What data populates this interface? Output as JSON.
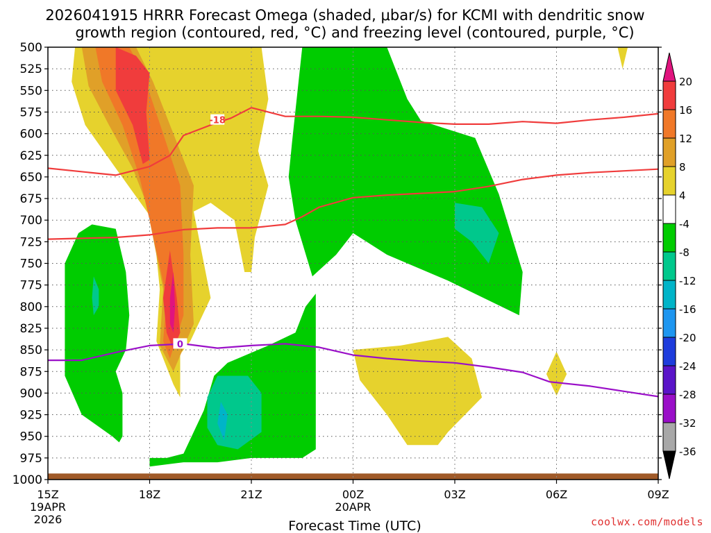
{
  "title": {
    "line1": "2026041915 HRRR Forecast Omega (shaded, μbar/s) for KCMI with dendritic snow",
    "line2": "growth region (contoured, red, °C) and freezing level (contoured, purple, °C)"
  },
  "credit": "coolwx.com/models",
  "chart_data": {
    "type": "heatmap",
    "title": "2026041915 HRRR Forecast Omega (shaded, μbar/s) for KCMI with dendritic snow growth region (contoured, red, °C) and freezing level (contoured, purple, °C)",
    "xlabel": "Forecast Time (UTC)",
    "ylabel": "",
    "y_axis": {
      "type": "pressure",
      "inverted": true,
      "ylim": [
        1000,
        500
      ],
      "ticks": [
        500,
        525,
        550,
        575,
        600,
        625,
        650,
        675,
        700,
        725,
        750,
        775,
        800,
        825,
        850,
        875,
        900,
        925,
        950,
        975,
        1000
      ]
    },
    "x_axis": {
      "units": "hours from 2026-04-19 15Z",
      "xlim": [
        0,
        18
      ],
      "ticks": [
        {
          "x": 0,
          "label": "15Z",
          "sub1": "19APR",
          "sub2": "2026"
        },
        {
          "x": 3,
          "label": "18Z",
          "sub1": "",
          "sub2": ""
        },
        {
          "x": 6,
          "label": "21Z",
          "sub1": "",
          "sub2": ""
        },
        {
          "x": 9,
          "label": "00Z",
          "sub1": "20APR",
          "sub2": ""
        },
        {
          "x": 12,
          "label": "03Z",
          "sub1": "",
          "sub2": ""
        },
        {
          "x": 15,
          "label": "06Z",
          "sub1": "",
          "sub2": ""
        },
        {
          "x": 18,
          "label": "09Z",
          "sub1": "",
          "sub2": ""
        }
      ]
    },
    "grid": true,
    "colorbar": {
      "labels": [
        "20",
        "16",
        "12",
        "8",
        "4",
        "-4",
        "-8",
        "-12",
        "-16",
        "-20",
        "-24",
        "-28",
        "-32",
        "-36"
      ],
      "bins": [
        {
          "color": "#e0147e"
        },
        {
          "color": "#f03c3c"
        },
        {
          "color": "#f07828"
        },
        {
          "color": "#e0a028"
        },
        {
          "color": "#e6d22d"
        },
        {
          "color": "#ffffff"
        },
        {
          "color": "#00cc00"
        },
        {
          "color": "#00c88c"
        },
        {
          "color": "#00b4c8"
        },
        {
          "color": "#1e96f0"
        },
        {
          "color": "#1e3cdc"
        },
        {
          "color": "#5a14c8"
        },
        {
          "color": "#9a0fc8"
        },
        {
          "color": "#a8a8a8"
        },
        {
          "color": "#000000"
        }
      ]
    },
    "omega_regions": [
      {
        "value": "4 to 8",
        "color": "#e6d22d",
        "points": [
          [
            0.8,
            500
          ],
          [
            6.3,
            500
          ],
          [
            6.5,
            560
          ],
          [
            6.2,
            620
          ],
          [
            6.5,
            660
          ],
          [
            6.1,
            720
          ],
          [
            6.0,
            760
          ],
          [
            5.8,
            760
          ],
          [
            5.5,
            700
          ],
          [
            4.8,
            680
          ],
          [
            4.3,
            690
          ],
          [
            4.8,
            790
          ],
          [
            4.2,
            840
          ],
          [
            3.9,
            855
          ],
          [
            3.9,
            905
          ],
          [
            3.7,
            890
          ],
          [
            3.2,
            840
          ],
          [
            3.3,
            780
          ],
          [
            3.1,
            700
          ],
          [
            2.0,
            640
          ],
          [
            1.1,
            590
          ],
          [
            0.7,
            540
          ]
        ]
      },
      {
        "value": "8 to 12",
        "color": "#e0a028",
        "points": [
          [
            1.0,
            500
          ],
          [
            2.6,
            500
          ],
          [
            3.1,
            540
          ],
          [
            3.6,
            590
          ],
          [
            4.3,
            660
          ],
          [
            4.2,
            740
          ],
          [
            4.3,
            820
          ],
          [
            3.7,
            875
          ],
          [
            3.3,
            845
          ],
          [
            3.4,
            780
          ],
          [
            2.9,
            680
          ],
          [
            2.5,
            640
          ],
          [
            1.8,
            590
          ],
          [
            1.2,
            545
          ]
        ]
      },
      {
        "value": "12 to 16",
        "color": "#f07828",
        "points": [
          [
            1.4,
            500
          ],
          [
            2.4,
            500
          ],
          [
            2.8,
            530
          ],
          [
            3.4,
            600
          ],
          [
            3.9,
            660
          ],
          [
            4.0,
            740
          ],
          [
            4.0,
            810
          ],
          [
            3.6,
            860
          ],
          [
            3.4,
            840
          ],
          [
            3.5,
            790
          ],
          [
            3.0,
            700
          ],
          [
            2.7,
            650
          ],
          [
            2.2,
            590
          ],
          [
            1.6,
            540
          ]
        ]
      },
      {
        "value": "16 to 20",
        "color": "#f03c3c",
        "points": [
          [
            2.0,
            500
          ],
          [
            2.6,
            510
          ],
          [
            3.0,
            530
          ],
          [
            2.9,
            575
          ],
          [
            3.0,
            630
          ],
          [
            2.8,
            635
          ],
          [
            2.5,
            590
          ],
          [
            2.0,
            550
          ]
        ]
      },
      {
        "value": "16 to 20",
        "color": "#f03c3c",
        "points": [
          [
            3.6,
            735
          ],
          [
            3.8,
            790
          ],
          [
            3.9,
            830
          ],
          [
            3.7,
            850
          ],
          [
            3.5,
            830
          ],
          [
            3.4,
            790
          ]
        ]
      },
      {
        "value": "20+",
        "color": "#e0147e",
        "points": [
          [
            3.7,
            760
          ],
          [
            3.75,
            800
          ],
          [
            3.7,
            830
          ],
          [
            3.6,
            820
          ],
          [
            3.6,
            790
          ]
        ]
      },
      {
        "value": "4 to 8",
        "color": "#e6d22d",
        "points": [
          [
            16.8,
            500
          ],
          [
            17.1,
            500
          ],
          [
            16.95,
            525
          ]
        ]
      },
      {
        "value": "4 to 8",
        "color": "#e6d22d",
        "points": [
          [
            15.0,
            852
          ],
          [
            15.3,
            878
          ],
          [
            15.0,
            903
          ],
          [
            14.7,
            878
          ]
        ]
      },
      {
        "value": "4 to 8",
        "color": "#e6d22d",
        "points": [
          [
            9.0,
            850
          ],
          [
            10.4,
            845
          ],
          [
            11.8,
            835
          ],
          [
            12.5,
            860
          ],
          [
            12.8,
            905
          ],
          [
            11.8,
            945
          ],
          [
            11.5,
            960
          ],
          [
            10.6,
            960
          ],
          [
            10.0,
            925
          ],
          [
            9.2,
            885
          ]
        ]
      },
      {
        "value": "-8 to -4",
        "color": "#00cc00",
        "points": [
          [
            0.9,
            715
          ],
          [
            1.3,
            705
          ],
          [
            2.0,
            710
          ],
          [
            2.3,
            760
          ],
          [
            2.4,
            810
          ],
          [
            2.3,
            850
          ],
          [
            2.0,
            875
          ],
          [
            2.2,
            900
          ],
          [
            2.2,
            950
          ],
          [
            2.1,
            957
          ],
          [
            1.9,
            950
          ],
          [
            1.0,
            925
          ],
          [
            0.5,
            880
          ],
          [
            0.5,
            850
          ],
          [
            0.5,
            750
          ]
        ]
      },
      {
        "value": "-8 to -4",
        "color": "#00cc00",
        "points": [
          [
            7.5,
            500
          ],
          [
            10.0,
            500
          ],
          [
            10.6,
            560
          ],
          [
            11.0,
            585
          ],
          [
            12.6,
            605
          ],
          [
            13.3,
            670
          ],
          [
            14.0,
            760
          ],
          [
            13.9,
            810
          ],
          [
            11.8,
            770
          ],
          [
            10.0,
            740
          ],
          [
            9.0,
            715
          ],
          [
            8.5,
            740
          ],
          [
            7.8,
            765
          ],
          [
            7.3,
            700
          ],
          [
            7.1,
            650
          ],
          [
            7.2,
            610
          ]
        ]
      },
      {
        "value": "-8 to -4",
        "color": "#00cc00",
        "points": [
          [
            7.9,
            785
          ],
          [
            7.9,
            855
          ],
          [
            7.9,
            965
          ],
          [
            7.5,
            975
          ],
          [
            6.0,
            975
          ],
          [
            5.0,
            980
          ],
          [
            4.0,
            980
          ],
          [
            3.0,
            985
          ],
          [
            3.0,
            975
          ],
          [
            3.5,
            975
          ],
          [
            4.0,
            970
          ],
          [
            4.6,
            920
          ],
          [
            4.9,
            880
          ],
          [
            5.3,
            865
          ],
          [
            6.5,
            845
          ],
          [
            7.3,
            830
          ],
          [
            7.6,
            800
          ]
        ]
      },
      {
        "value": "-12 to -8",
        "color": "#00c88c",
        "points": [
          [
            1.35,
            765
          ],
          [
            1.5,
            780
          ],
          [
            1.5,
            800
          ],
          [
            1.35,
            810
          ],
          [
            1.3,
            790
          ]
        ]
      },
      {
        "value": "-12 to -8",
        "color": "#00c88c",
        "points": [
          [
            12.0,
            680
          ],
          [
            12.8,
            685
          ],
          [
            13.3,
            715
          ],
          [
            13.0,
            750
          ],
          [
            12.5,
            725
          ],
          [
            12.0,
            710
          ]
        ]
      },
      {
        "value": "-12 to -8",
        "color": "#00c88c",
        "points": [
          [
            5.0,
            880
          ],
          [
            5.9,
            880
          ],
          [
            6.3,
            900
          ],
          [
            6.3,
            945
          ],
          [
            5.6,
            965
          ],
          [
            5.0,
            960
          ],
          [
            4.7,
            940
          ],
          [
            4.7,
            905
          ]
        ]
      },
      {
        "value": "-16 to -12",
        "color": "#00b4c8",
        "points": [
          [
            5.1,
            910
          ],
          [
            5.3,
            925
          ],
          [
            5.2,
            955
          ],
          [
            5.0,
            935
          ]
        ]
      }
    ],
    "isotherms": [
      {
        "name": "-18 °C",
        "color": "#f03c3c",
        "label": "-18",
        "label_at": [
          5.0,
          584
        ],
        "points": [
          [
            0,
            640
          ],
          [
            2,
            648
          ],
          [
            3,
            638
          ],
          [
            3.6,
            625
          ],
          [
            4,
            602
          ],
          [
            5,
            587
          ],
          [
            5.4,
            582
          ],
          [
            6,
            570
          ],
          [
            6.5,
            575
          ],
          [
            7,
            580
          ],
          [
            8,
            580
          ],
          [
            9,
            581
          ],
          [
            10,
            584
          ],
          [
            11,
            587
          ],
          [
            12,
            589
          ],
          [
            13,
            589
          ],
          [
            14,
            586
          ],
          [
            15,
            588
          ],
          [
            16,
            584
          ],
          [
            17,
            581
          ],
          [
            18,
            577
          ]
        ]
      },
      {
        "name": "-12 °C",
        "color": "#f03c3c",
        "label": "",
        "points": [
          [
            0,
            722
          ],
          [
            2,
            720
          ],
          [
            3,
            717
          ],
          [
            4,
            711
          ],
          [
            5,
            709
          ],
          [
            6,
            709
          ],
          [
            7,
            705
          ],
          [
            7.5,
            696
          ],
          [
            8,
            685
          ],
          [
            9,
            674
          ],
          [
            10,
            671
          ],
          [
            11,
            669
          ],
          [
            12,
            667
          ],
          [
            13,
            661
          ],
          [
            14,
            653
          ],
          [
            15,
            648
          ],
          [
            16,
            645
          ],
          [
            17,
            643
          ],
          [
            18,
            641
          ]
        ]
      },
      {
        "name": "0 °C",
        "color": "#9a0fc8",
        "label": "0",
        "label_at": [
          3.9,
          843
        ],
        "points": [
          [
            0,
            862
          ],
          [
            1,
            862
          ],
          [
            2,
            853
          ],
          [
            3,
            845
          ],
          [
            4,
            843
          ],
          [
            5,
            848
          ],
          [
            6,
            845
          ],
          [
            7,
            843
          ],
          [
            8,
            847
          ],
          [
            9,
            856
          ],
          [
            10,
            860
          ],
          [
            11,
            863
          ],
          [
            12,
            865
          ],
          [
            13,
            870
          ],
          [
            14,
            876
          ],
          [
            14.8,
            887
          ],
          [
            16,
            892
          ],
          [
            17,
            898
          ],
          [
            18,
            904
          ]
        ]
      }
    ],
    "terrain": {
      "color": "#a05a28",
      "top_pressure": 993
    }
  }
}
